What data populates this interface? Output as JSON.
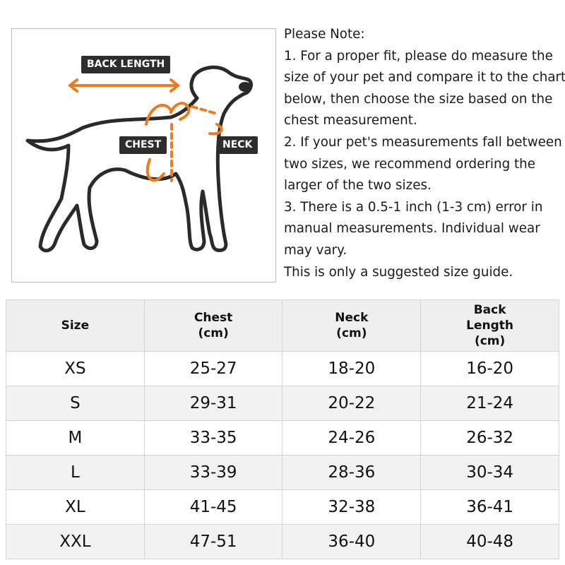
{
  "diagram": {
    "labels": {
      "back_length": "BACK LENGTH",
      "chest": "CHEST",
      "neck": "NECK"
    },
    "accent_color": "#f07b1c",
    "icon": "dog-outline-measurement"
  },
  "note": {
    "lines": [
      "Please Note:",
      "1. For a proper fit, please do measure the",
      "size of your pet and compare it to the chart",
      "below, then choose the size based on the",
      "chest measurement.",
      "2. If your pet's measurements fall between",
      "two sizes, we recommend ordering the",
      "larger of the two sizes.",
      "3. There is a 0.5-1 inch (1-3 cm) error in",
      "manual measurements. Individual wear",
      "may vary.",
      "This is only a suggested size guide."
    ]
  },
  "table": {
    "headers": [
      [
        "Size"
      ],
      [
        "Chest",
        "(cm)"
      ],
      [
        "Neck",
        "(cm)"
      ],
      [
        "Back",
        "Length",
        "(cm)"
      ]
    ],
    "rows": [
      [
        "XS",
        "25-27",
        "18-20",
        "16-20"
      ],
      [
        "S",
        "29-31",
        "20-22",
        "21-24"
      ],
      [
        "M",
        "33-35",
        "24-26",
        "26-32"
      ],
      [
        "L",
        "33-39",
        "28-36",
        "30-34"
      ],
      [
        "XL",
        "41-45",
        "32-38",
        "36-41"
      ],
      [
        "XXL",
        "47-51",
        "36-40",
        "40-48"
      ]
    ]
  }
}
